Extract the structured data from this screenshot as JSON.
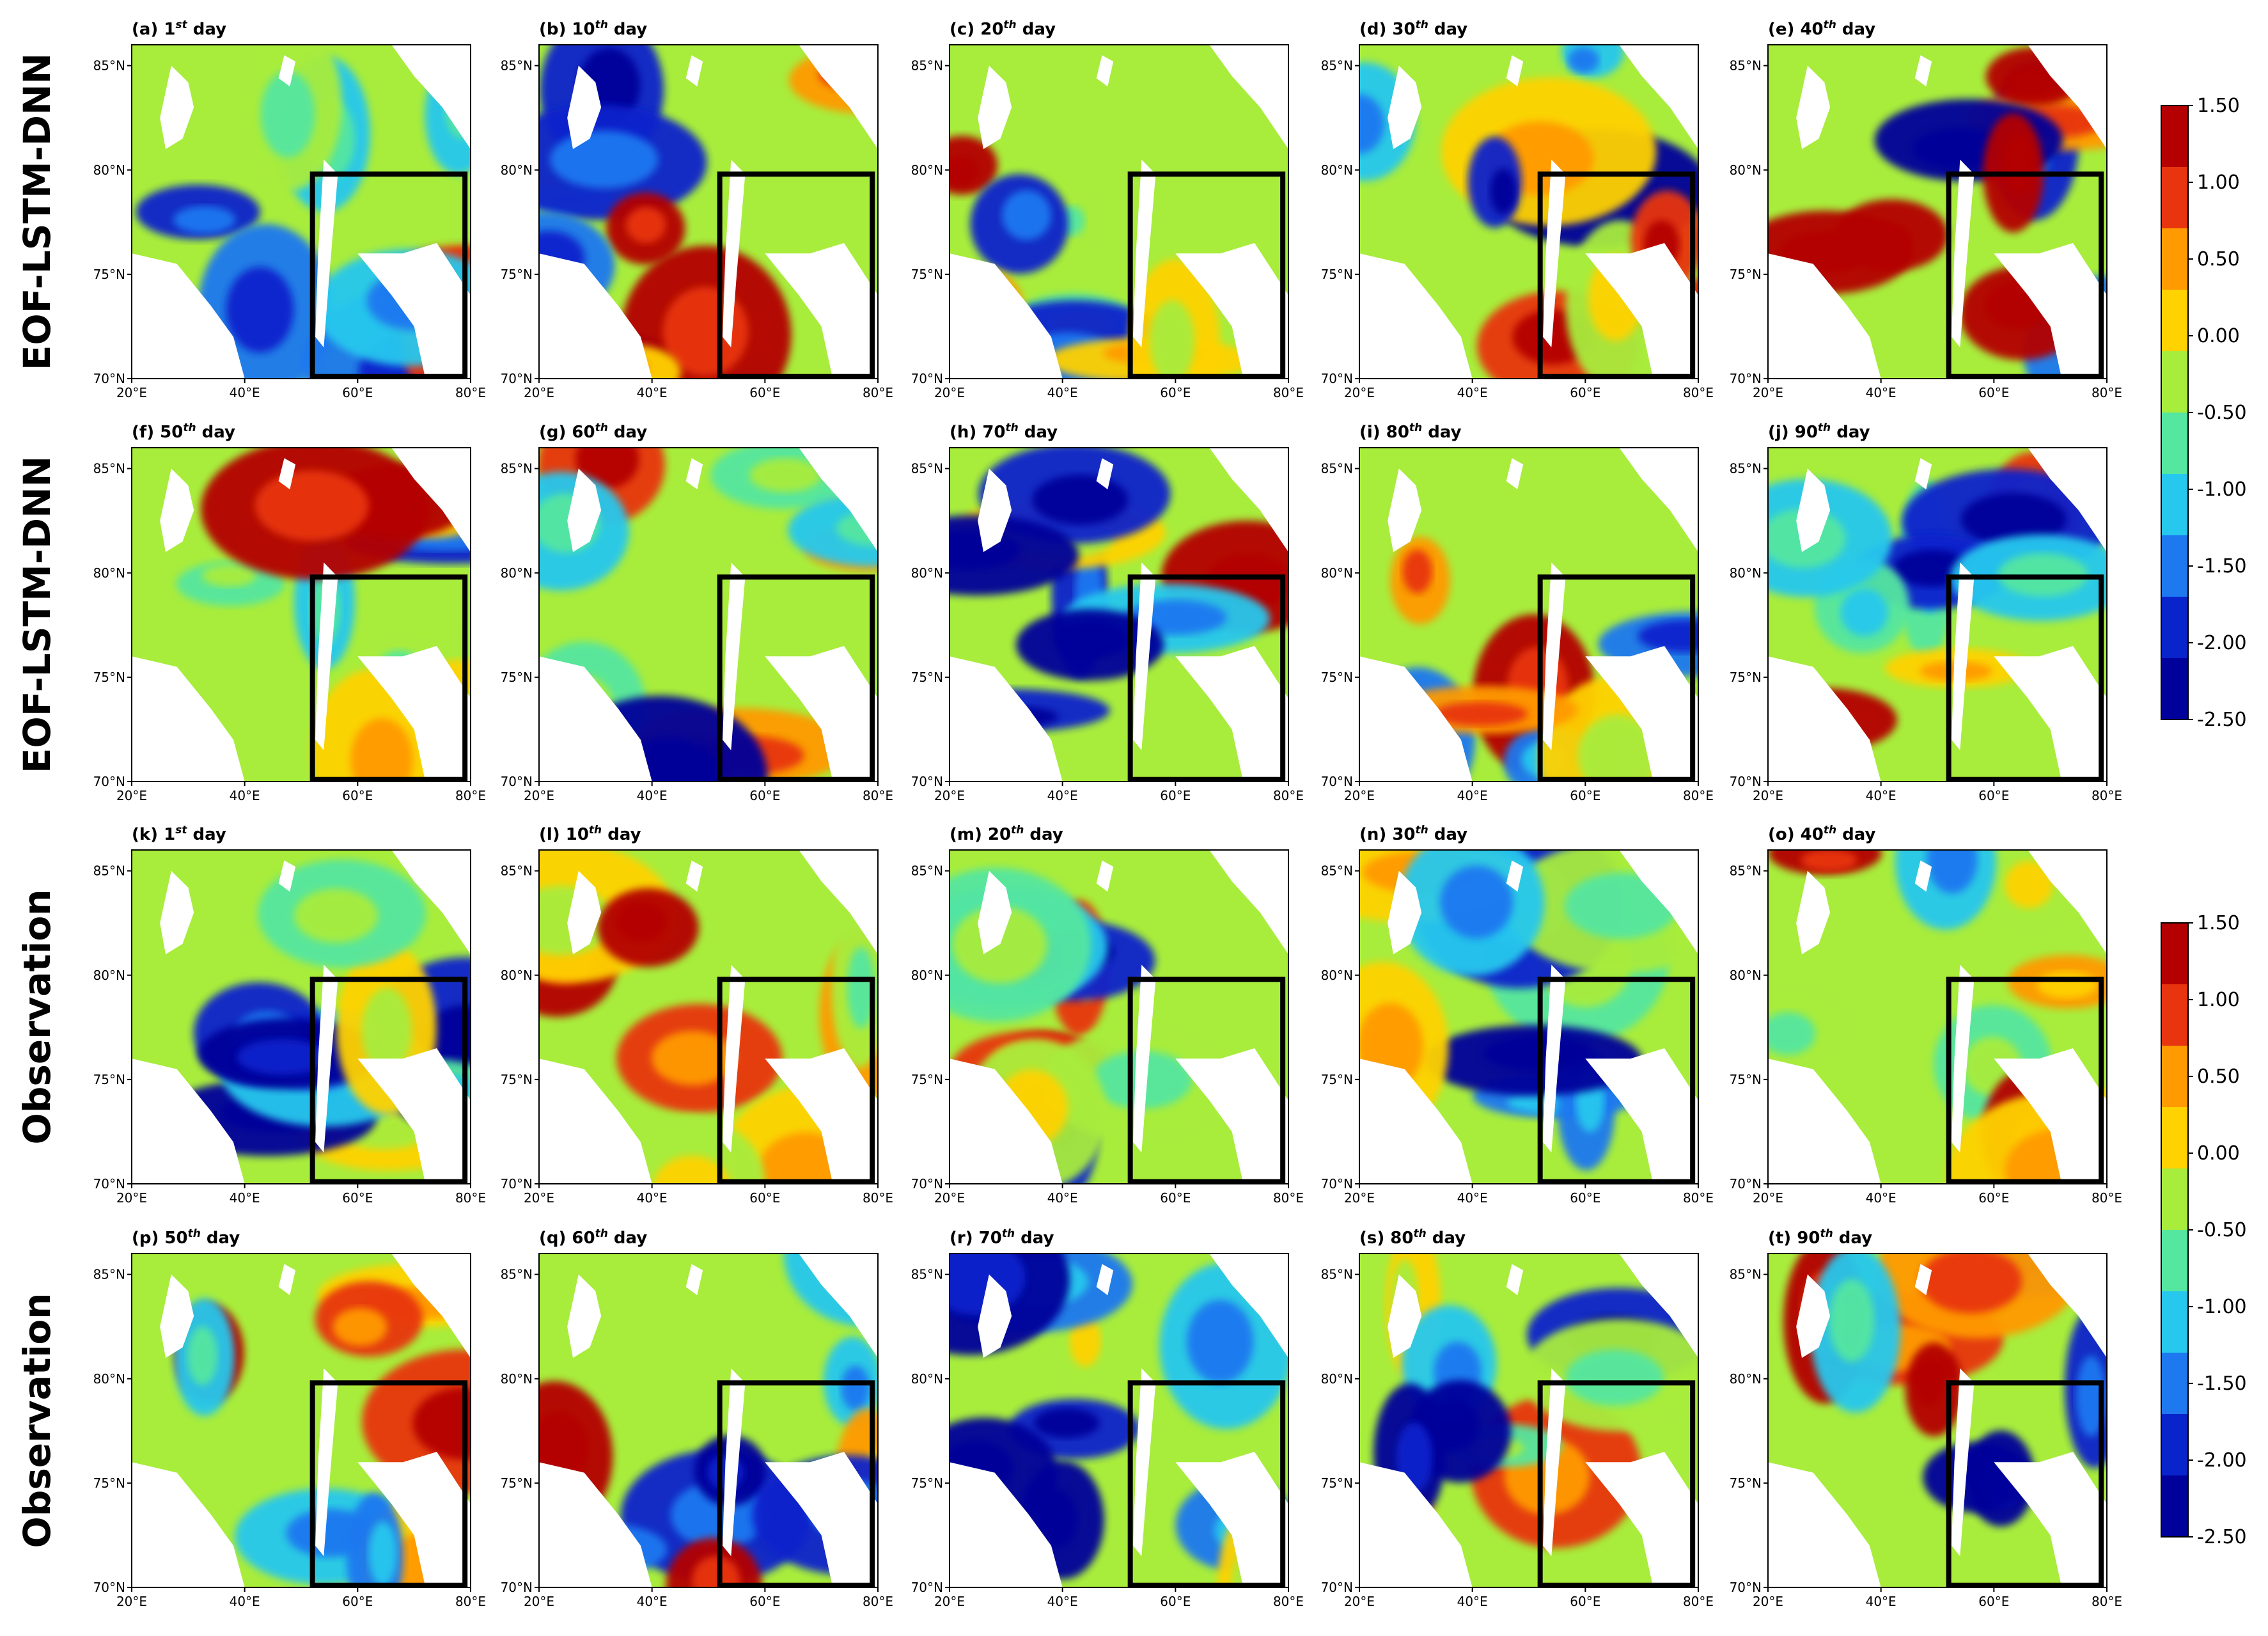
{
  "chart_data": {
    "type": "heatmap",
    "description_rows": [
      "EOF-LSTM-DNN",
      "EOF-LSTM-DNN",
      "Observation",
      "Observation"
    ],
    "panels": [
      {
        "id": "a",
        "prefix": "(a) ",
        "num": "1",
        "sup": "st",
        "suffix": " day"
      },
      {
        "id": "b",
        "prefix": "(b) ",
        "num": "10",
        "sup": "th",
        "suffix": " day"
      },
      {
        "id": "c",
        "prefix": "(c) ",
        "num": "20",
        "sup": "th",
        "suffix": " day"
      },
      {
        "id": "d",
        "prefix": "(d) ",
        "num": "30",
        "sup": "th",
        "suffix": " day"
      },
      {
        "id": "e",
        "prefix": "(e) ",
        "num": "40",
        "sup": "th",
        "suffix": " day"
      },
      {
        "id": "f",
        "prefix": "(f) ",
        "num": "50",
        "sup": "th",
        "suffix": " day"
      },
      {
        "id": "g",
        "prefix": "(g) ",
        "num": "60",
        "sup": "th",
        "suffix": " day"
      },
      {
        "id": "h",
        "prefix": "(h) ",
        "num": "70",
        "sup": "th",
        "suffix": " day"
      },
      {
        "id": "i",
        "prefix": "(i) ",
        "num": "80",
        "sup": "th",
        "suffix": " day"
      },
      {
        "id": "j",
        "prefix": "(j) ",
        "num": "90",
        "sup": "th",
        "suffix": " day"
      },
      {
        "id": "k",
        "prefix": "(k) ",
        "num": "1",
        "sup": "st",
        "suffix": " day"
      },
      {
        "id": "l",
        "prefix": "(l) ",
        "num": "10",
        "sup": "th",
        "suffix": " day"
      },
      {
        "id": "m",
        "prefix": "(m) ",
        "num": "20",
        "sup": "th",
        "suffix": " day"
      },
      {
        "id": "n",
        "prefix": "(n) ",
        "num": "30",
        "sup": "th",
        "suffix": " day"
      },
      {
        "id": "o",
        "prefix": "(o) ",
        "num": "40",
        "sup": "th",
        "suffix": " day"
      },
      {
        "id": "p",
        "prefix": "(p) ",
        "num": "50",
        "sup": "th",
        "suffix": " day"
      },
      {
        "id": "q",
        "prefix": "(q) ",
        "num": "60",
        "sup": "th",
        "suffix": " day"
      },
      {
        "id": "r",
        "prefix": "(r) ",
        "num": "70",
        "sup": "th",
        "suffix": " day"
      },
      {
        "id": "s",
        "prefix": "(s) ",
        "num": "80",
        "sup": "th",
        "suffix": " day"
      },
      {
        "id": "t",
        "prefix": "(t) ",
        "num": "90",
        "sup": "th",
        "suffix": " day"
      }
    ],
    "x_ticks": [
      "20°E",
      "40°E",
      "60°E",
      "80°E"
    ],
    "y_ticks": [
      "85°N",
      "80°N",
      "75°N",
      "70°N"
    ],
    "xlim": [
      20,
      80
    ],
    "ylim": [
      70,
      86
    ],
    "box_region": {
      "lon": [
        52,
        79
      ],
      "lat": [
        70.1,
        79.8
      ]
    },
    "colorbar": {
      "levels": [
        "1.50",
        "1.00",
        "0.50",
        "0.00",
        "-0.50",
        "-1.00",
        "-1.50",
        "-2.00",
        "-2.50"
      ],
      "colors": [
        "#b40000",
        "#e8350f",
        "#ff9a00",
        "#ffd200",
        "#a8ec3c",
        "#55e6a0",
        "#26c8ee",
        "#1e78f0",
        "#0a24cc",
        "#00009a"
      ]
    }
  }
}
